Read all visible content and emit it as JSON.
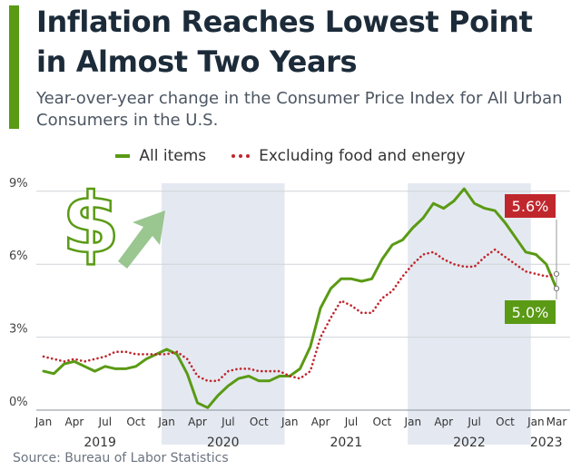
{
  "title": "Inflation Reaches Lowest Point in Almost Two Years",
  "subtitle": "Year-over-year change in the Consumer Price Index for All Urban Consumers in the U.S.",
  "source": "Source: Bureau of Labor Statistics",
  "colors": {
    "accent": "#5a9a14",
    "core": "#c0272d",
    "shade": "#e4e9f1",
    "grid": "#d0d4d8"
  },
  "legend": {
    "all_items": "All items",
    "core": "Excluding food and energy"
  },
  "callouts": {
    "core_label": "5.6%",
    "all_label": "5.0%"
  },
  "icons": [
    "dollar-icon",
    "arrow-up-icon"
  ],
  "chart_data": {
    "type": "line",
    "title": "Inflation Reaches Lowest Point in Almost Two Years",
    "ylabel": "",
    "xlabel": "",
    "ylim": [
      0,
      9.5
    ],
    "y_ticks": [
      0,
      3,
      6,
      9
    ],
    "y_tick_labels": [
      "0%",
      "3%",
      "6%",
      "9%"
    ],
    "x_month_ticks": [
      {
        "i": 0,
        "label": "Jan"
      },
      {
        "i": 3,
        "label": "Apr"
      },
      {
        "i": 6,
        "label": "Jul"
      },
      {
        "i": 9,
        "label": "Oct"
      },
      {
        "i": 12,
        "label": "Jan"
      },
      {
        "i": 15,
        "label": "Apr"
      },
      {
        "i": 18,
        "label": "Jul"
      },
      {
        "i": 21,
        "label": "Oct"
      },
      {
        "i": 24,
        "label": "Jan"
      },
      {
        "i": 27,
        "label": "Apr"
      },
      {
        "i": 30,
        "label": "Jul"
      },
      {
        "i": 33,
        "label": "Oct"
      },
      {
        "i": 36,
        "label": "Jan"
      },
      {
        "i": 39,
        "label": "Apr"
      },
      {
        "i": 42,
        "label": "Jul"
      },
      {
        "i": 45,
        "label": "Oct"
      },
      {
        "i": 48,
        "label": "Jan"
      },
      {
        "i": 50,
        "label": "Mar"
      }
    ],
    "year_labels": [
      {
        "center": 5.5,
        "label": "2019"
      },
      {
        "center": 17.5,
        "label": "2020"
      },
      {
        "center": 29.5,
        "label": "2021"
      },
      {
        "center": 41.5,
        "label": "2022"
      },
      {
        "center": 49,
        "label": "2023"
      }
    ],
    "shaded_years": [
      [
        12,
        24
      ],
      [
        36,
        48
      ]
    ],
    "series": [
      {
        "name": "All items",
        "values": [
          1.6,
          1.5,
          1.9,
          2.0,
          1.8,
          1.6,
          1.8,
          1.7,
          1.7,
          1.8,
          2.1,
          2.3,
          2.5,
          2.3,
          1.5,
          0.3,
          0.1,
          0.6,
          1.0,
          1.3,
          1.4,
          1.2,
          1.2,
          1.4,
          1.4,
          1.7,
          2.6,
          4.2,
          5.0,
          5.4,
          5.4,
          5.3,
          5.4,
          6.2,
          6.8,
          7.0,
          7.5,
          7.9,
          8.5,
          8.3,
          8.6,
          9.1,
          8.5,
          8.3,
          8.2,
          7.7,
          7.1,
          6.5,
          6.4,
          6.0,
          5.0
        ]
      },
      {
        "name": "Excluding food and energy",
        "values": [
          2.2,
          2.1,
          2.0,
          2.1,
          2.0,
          2.1,
          2.2,
          2.4,
          2.4,
          2.3,
          2.3,
          2.3,
          2.3,
          2.4,
          2.1,
          1.4,
          1.2,
          1.2,
          1.6,
          1.7,
          1.7,
          1.6,
          1.6,
          1.6,
          1.4,
          1.3,
          1.6,
          3.0,
          3.8,
          4.5,
          4.3,
          4.0,
          4.0,
          4.6,
          4.9,
          5.5,
          6.0,
          6.4,
          6.5,
          6.2,
          6.0,
          5.9,
          5.9,
          6.3,
          6.6,
          6.3,
          6.0,
          5.7,
          5.6,
          5.5,
          5.6
        ]
      }
    ]
  }
}
